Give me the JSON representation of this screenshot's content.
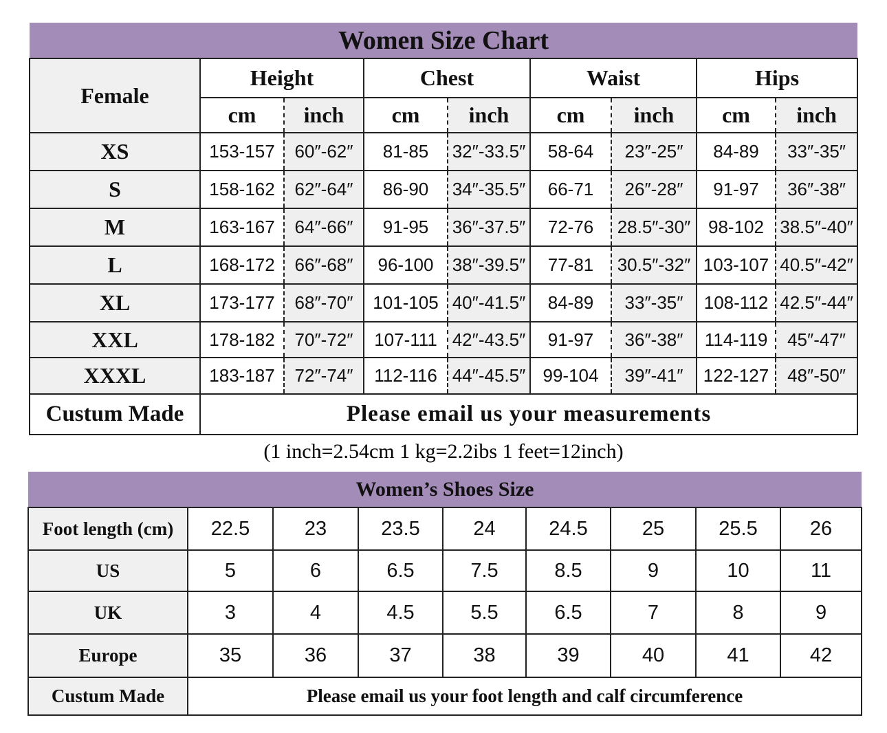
{
  "size_table": {
    "title": "Women Size Chart",
    "row_header": "Female",
    "groups": [
      "Height",
      "Chest",
      "Waist",
      "Hips"
    ],
    "units": [
      "cm",
      "inch",
      "cm",
      "inch",
      "cm",
      "inch",
      "cm",
      "inch"
    ],
    "rows": [
      {
        "size": "XS",
        "values": [
          "153-157",
          "60″-62″",
          "81-85",
          "32″-33.5″",
          "58-64",
          "23″-25″",
          "84-89",
          "33″-35″"
        ]
      },
      {
        "size": "S",
        "values": [
          "158-162",
          "62″-64″",
          "86-90",
          "34″-35.5″",
          "66-71",
          "26″-28″",
          "91-97",
          "36″-38″"
        ]
      },
      {
        "size": "M",
        "values": [
          "163-167",
          "64″-66″",
          "91-95",
          "36″-37.5″",
          "72-76",
          "28.5″-30″",
          "98-102",
          "38.5″-40″"
        ]
      },
      {
        "size": "L",
        "values": [
          "168-172",
          "66″-68″",
          "96-100",
          "38″-39.5″",
          "77-81",
          "30.5″-32″",
          "103-107",
          "40.5″-42″"
        ]
      },
      {
        "size": "XL",
        "values": [
          "173-177",
          "68″-70″",
          "101-105",
          "40″-41.5″",
          "84-89",
          "33″-35″",
          "108-112",
          "42.5″-44″"
        ]
      },
      {
        "size": "XXL",
        "values": [
          "178-182",
          "70″-72″",
          "107-111",
          "42″-43.5″",
          "91-97",
          "36″-38″",
          "114-119",
          "45″-47″"
        ]
      },
      {
        "size": "XXXL",
        "values": [
          "183-187",
          "72″-74″",
          "112-116",
          "44″-45.5″",
          "99-104",
          "39″-41″",
          "122-127",
          "48″-50″"
        ]
      }
    ],
    "custom": {
      "label": "Custum Made",
      "text": "Please email us your measurements"
    }
  },
  "note": "(1 inch=2.54cm  1 kg=2.2ibs  1 feet=12inch)",
  "shoe_table": {
    "title": "Women’s Shoes Size",
    "rows": [
      {
        "label": "Foot length (cm)",
        "values": [
          "22.5",
          "23",
          "23.5",
          "24",
          "24.5",
          "25",
          "25.5",
          "26"
        ]
      },
      {
        "label": "US",
        "values": [
          "5",
          "6",
          "6.5",
          "7.5",
          "8.5",
          "9",
          "10",
          "11"
        ]
      },
      {
        "label": "UK",
        "values": [
          "3",
          "4",
          "4.5",
          "5.5",
          "6.5",
          "7",
          "8",
          "9"
        ]
      },
      {
        "label": "Europe",
        "values": [
          "35",
          "36",
          "37",
          "38",
          "39",
          "40",
          "41",
          "42"
        ]
      }
    ],
    "custom": {
      "label": "Custum Made",
      "text": "Please email us your foot length and calf circumference"
    }
  }
}
